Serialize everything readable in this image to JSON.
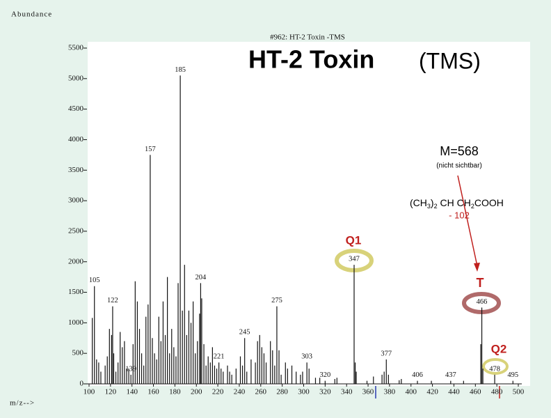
{
  "chart_data": {
    "type": "stem",
    "title": "#962: HT-2 Toxin -TMS",
    "headline": "HT-2 Toxin",
    "headline_suffix": "(TMS)",
    "y_label": "Abundance",
    "x_label": "m/z-->",
    "color": "#111111",
    "xlim": [
      100,
      500
    ],
    "xticks": [
      100,
      120,
      140,
      160,
      180,
      200,
      220,
      240,
      260,
      280,
      300,
      320,
      340,
      360,
      380,
      400,
      420,
      440,
      460,
      480,
      500
    ],
    "ylim": [
      0,
      5500
    ],
    "yticks": [
      0,
      500,
      1000,
      1500,
      2000,
      2500,
      3000,
      3500,
      4000,
      4500,
      5000,
      5500
    ],
    "x": [
      103,
      105,
      107,
      109,
      111,
      115,
      117,
      119,
      121,
      122,
      123,
      125,
      127,
      129,
      131,
      133,
      135,
      137,
      139,
      141,
      143,
      145,
      147,
      149,
      151,
      153,
      155,
      157,
      159,
      161,
      163,
      165,
      167,
      169,
      171,
      173,
      175,
      177,
      179,
      181,
      183,
      185,
      187,
      189,
      191,
      193,
      195,
      197,
      199,
      201,
      203,
      204,
      205,
      207,
      209,
      211,
      213,
      215,
      217,
      219,
      221,
      223,
      225,
      229,
      231,
      233,
      237,
      241,
      243,
      245,
      247,
      251,
      255,
      257,
      259,
      261,
      263,
      265,
      269,
      271,
      273,
      275,
      277,
      279,
      283,
      285,
      289,
      293,
      297,
      299,
      303,
      305,
      311,
      315,
      320,
      329,
      331,
      347,
      348,
      349,
      359,
      365,
      373,
      375,
      377,
      379,
      389,
      391,
      406,
      419,
      437,
      449,
      465,
      466,
      467,
      478,
      495
    ],
    "values": [
      1080,
      1600,
      400,
      350,
      200,
      300,
      450,
      900,
      800,
      1270,
      500,
      200,
      350,
      850,
      600,
      700,
      250,
      250,
      150,
      650,
      1680,
      1350,
      900,
      500,
      300,
      1100,
      1300,
      3750,
      750,
      500,
      400,
      1100,
      700,
      1350,
      800,
      1750,
      500,
      900,
      600,
      450,
      1650,
      5050,
      1200,
      1950,
      800,
      1200,
      1000,
      1350,
      500,
      700,
      1150,
      1650,
      1400,
      650,
      300,
      450,
      350,
      600,
      300,
      250,
      350,
      250,
      200,
      300,
      200,
      150,
      250,
      450,
      300,
      750,
      200,
      400,
      350,
      700,
      800,
      600,
      500,
      350,
      700,
      550,
      300,
      1270,
      550,
      150,
      350,
      250,
      300,
      200,
      150,
      200,
      350,
      250,
      100,
      100,
      50,
      80,
      100,
      1950,
      350,
      200,
      50,
      120,
      150,
      200,
      400,
      150,
      60,
      80,
      50,
      50,
      50,
      50,
      650,
      1250,
      250,
      150,
      50
    ],
    "peak_labels": [
      null,
      "105",
      null,
      null,
      null,
      null,
      null,
      null,
      null,
      "122",
      null,
      null,
      null,
      null,
      null,
      null,
      null,
      null,
      "139",
      null,
      null,
      null,
      null,
      null,
      null,
      null,
      null,
      "157",
      null,
      null,
      null,
      null,
      null,
      null,
      null,
      null,
      null,
      null,
      null,
      null,
      null,
      "185",
      null,
      null,
      null,
      null,
      null,
      null,
      null,
      null,
      null,
      "204",
      null,
      null,
      null,
      null,
      null,
      null,
      null,
      null,
      "221",
      null,
      null,
      null,
      null,
      null,
      null,
      null,
      null,
      "245",
      null,
      null,
      null,
      null,
      null,
      null,
      null,
      null,
      null,
      null,
      null,
      "275",
      null,
      null,
      null,
      null,
      null,
      null,
      null,
      null,
      "303",
      null,
      null,
      null,
      "320",
      null,
      null,
      "347",
      null,
      null,
      null,
      null,
      null,
      null,
      "377",
      null,
      null,
      null,
      "406",
      null,
      "437",
      null,
      null,
      "466",
      null,
      "478",
      "495"
    ],
    "annotations": {
      "mass": "M=568",
      "mass_note": "(nicht sichtbar)",
      "formula": [
        "(CH",
        "3",
        ")",
        "2",
        " CH CH",
        "2",
        "COOH"
      ],
      "loss": "- 102",
      "q1": "Q1",
      "t": "T",
      "q2": "Q2"
    }
  }
}
